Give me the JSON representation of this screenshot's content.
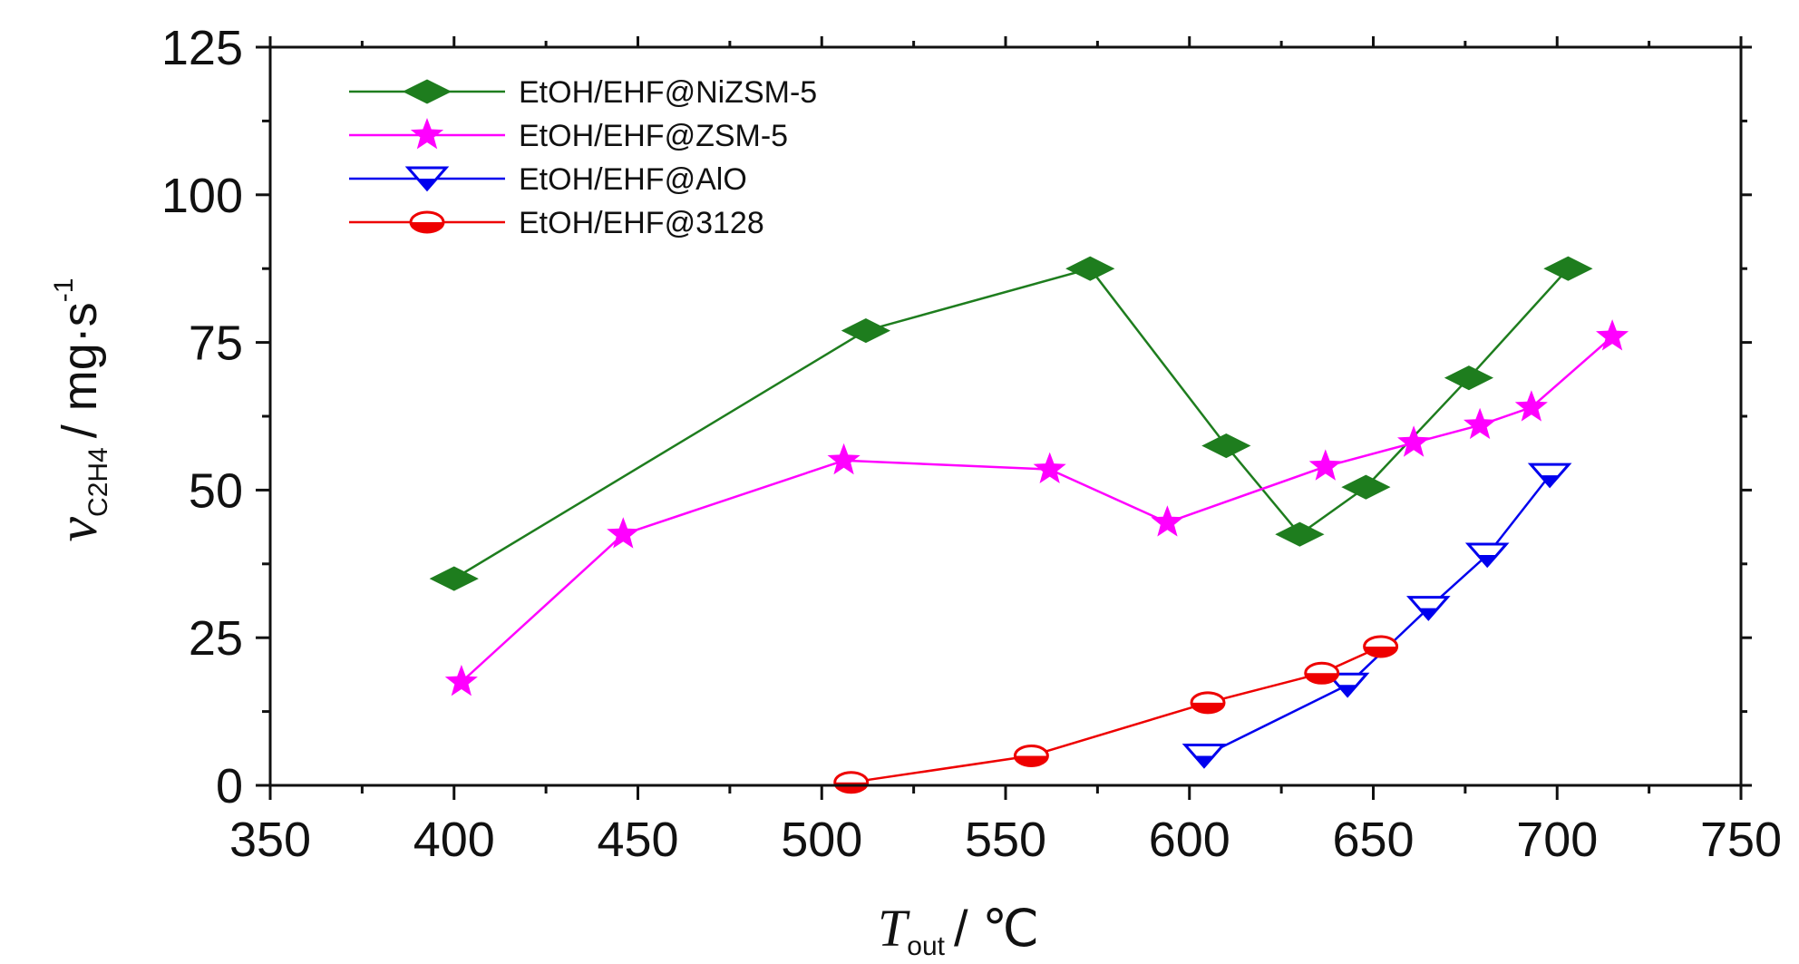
{
  "chart_data": {
    "type": "line",
    "x_axis": {
      "range": [
        350,
        750
      ],
      "ticks": [
        350,
        400,
        450,
        500,
        550,
        600,
        650,
        700,
        750
      ],
      "label": {
        "symbol": "T",
        "subscript": "out",
        "unit": "/ ℃"
      }
    },
    "y_axis": {
      "range": [
        0,
        125
      ],
      "ticks": [
        0,
        25,
        50,
        75,
        100,
        125
      ],
      "label": {
        "symbol": "v",
        "subscript": "C2H4",
        "unit": "/ mg·s",
        "superscript": "-1"
      }
    },
    "grid": false,
    "legend_position": "top-left",
    "series": [
      {
        "name": "EtOH/EHF@NiZSM-5",
        "color": "#1e7d1e",
        "marker": "diamond",
        "points": [
          [
            400,
            35
          ],
          [
            512,
            77
          ],
          [
            573,
            87.5
          ],
          [
            610,
            57.5
          ],
          [
            630,
            42.5
          ],
          [
            648,
            50.5
          ],
          [
            676,
            69
          ],
          [
            703,
            87.5
          ]
        ]
      },
      {
        "name": "EtOH/EHF@ZSM-5",
        "color": "#ff00ff",
        "marker": "star",
        "points": [
          [
            402,
            17.5
          ],
          [
            446,
            42.5
          ],
          [
            506,
            55
          ],
          [
            562,
            53.5
          ],
          [
            594,
            44.5
          ],
          [
            637,
            54
          ],
          [
            661,
            58
          ],
          [
            679,
            61
          ],
          [
            693,
            64
          ],
          [
            715,
            76
          ]
        ]
      },
      {
        "name": "EtOH/EHF@AlO",
        "color": "#0000ee",
        "marker": "triangle-down",
        "points": [
          [
            604,
            5
          ],
          [
            643,
            17
          ],
          [
            665,
            30
          ],
          [
            681,
            39
          ],
          [
            698,
            52.5
          ]
        ]
      },
      {
        "name": "EtOH/EHF@3128",
        "color": "#ee0000",
        "marker": "circle-half",
        "points": [
          [
            508,
            0.5
          ],
          [
            557,
            5
          ],
          [
            605,
            14
          ],
          [
            636,
            19
          ],
          [
            652,
            23.5
          ]
        ]
      }
    ]
  }
}
